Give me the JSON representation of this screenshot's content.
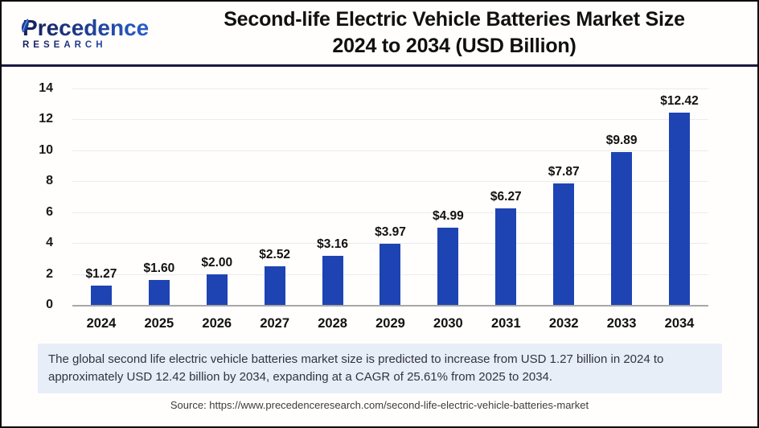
{
  "header": {
    "logo_line1": "Precedence",
    "logo_line2": "RESEARCH",
    "title_line1": "Second-life Electric Vehicle Batteries Market Size",
    "title_line2": "2024 to 2034 (USD Billion)"
  },
  "chart_data": {
    "type": "bar",
    "title": "Second-life Electric Vehicle Batteries Market Size 2024 to 2034 (USD Billion)",
    "categories": [
      "2024",
      "2025",
      "2026",
      "2027",
      "2028",
      "2029",
      "2030",
      "2031",
      "2032",
      "2033",
      "2034"
    ],
    "values": [
      1.27,
      1.6,
      2.0,
      2.52,
      3.16,
      3.97,
      4.99,
      6.27,
      7.87,
      9.89,
      12.42
    ],
    "value_labels": [
      "$1.27",
      "$1.60",
      "$2.00",
      "$2.52",
      "$3.16",
      "$3.97",
      "$4.99",
      "$6.27",
      "$7.87",
      "$9.89",
      "$12.42"
    ],
    "xlabel": "",
    "ylabel": "",
    "ylim": [
      0,
      14
    ],
    "yticks": [
      0,
      2,
      4,
      6,
      8,
      10,
      12,
      14
    ],
    "grid": true,
    "legend": "none",
    "bar_color": "#1d44b2"
  },
  "note": {
    "text": "The global second life electric vehicle batteries market size is predicted to increase from USD 1.27 billion in 2024 to approximately USD 12.42 billion by 2034, expanding at a CAGR of 25.61% from 2025 to 2034."
  },
  "source": {
    "text": "Source: https://www.precedenceresearch.com/second-life-electric-vehicle-batteries-market"
  },
  "colors": {
    "bar": "#1d44b2",
    "header_rule_navy": "#191945",
    "note_background": "#e7eef7",
    "logo_navy": "#16215d",
    "logo_blue": "#2b66d9"
  }
}
